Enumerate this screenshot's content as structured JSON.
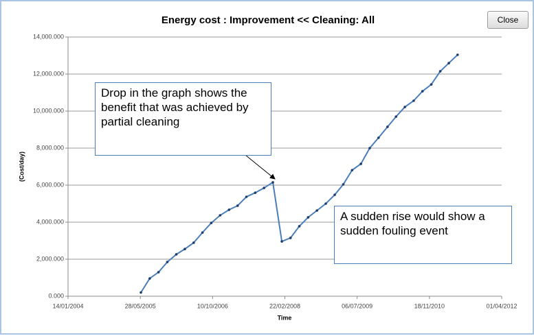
{
  "window": {
    "close_button": "Close"
  },
  "chart_data": {
    "type": "line",
    "title": "Energy cost : Improvement << Cleaning: All",
    "x_label": "Time",
    "y_label": "(Cost/day)",
    "x": [
      "2005-06-01",
      "2005-08-01",
      "2005-10-01",
      "2005-12-01",
      "2006-02-01",
      "2006-04-01",
      "2006-06-01",
      "2006-08-01",
      "2006-10-01",
      "2006-12-01",
      "2007-02-01",
      "2007-04-01",
      "2007-06-01",
      "2007-08-01",
      "2007-10-01",
      "2007-12-01",
      "2008-02-01",
      "2008-04-01",
      "2008-06-01",
      "2008-08-01",
      "2008-10-01",
      "2008-12-01",
      "2009-02-01",
      "2009-04-01",
      "2009-06-01",
      "2009-08-01",
      "2009-10-01",
      "2009-12-01",
      "2010-02-01",
      "2010-04-01",
      "2010-06-01",
      "2010-08-01",
      "2010-10-01",
      "2010-12-01",
      "2011-02-01",
      "2011-04-01",
      "2011-06-01"
    ],
    "series": [
      {
        "name": "Energy cost",
        "color": "#4a7ebb",
        "values": [
          200,
          960,
          1300,
          1850,
          2260,
          2550,
          2890,
          3440,
          3960,
          4370,
          4670,
          4890,
          5370,
          5590,
          5850,
          6150,
          2960,
          3150,
          3780,
          4260,
          4630,
          5000,
          5480,
          6040,
          6810,
          7150,
          8000,
          8560,
          9150,
          9700,
          10220,
          10560,
          11070,
          11440,
          12150,
          12590,
          13040
        ]
      }
    ],
    "xlim": [
      "2004-01-14",
      "2012-04-01"
    ],
    "xticks": [
      {
        "value": "2004-01-14",
        "label": "14/01/2004"
      },
      {
        "value": "2005-05-28",
        "label": "28/05/2005"
      },
      {
        "value": "2006-10-10",
        "label": "10/10/2006"
      },
      {
        "value": "2008-02-22",
        "label": "22/02/2008"
      },
      {
        "value": "2009-07-06",
        "label": "06/07/2009"
      },
      {
        "value": "2010-11-18",
        "label": "18/11/2010"
      },
      {
        "value": "2012-04-01",
        "label": "01/04/2012"
      }
    ],
    "ylim": [
      0,
      14000
    ],
    "yticks": [
      {
        "value": 0,
        "label": "0.000"
      },
      {
        "value": 2000,
        "label": "2,000.000"
      },
      {
        "value": 4000,
        "label": "4,000.000"
      },
      {
        "value": 6000,
        "label": "6,000.000"
      },
      {
        "value": 8000,
        "label": "8,000.000"
      },
      {
        "value": 10000,
        "label": "10,000.000"
      },
      {
        "value": 12000,
        "label": "12,000.000"
      },
      {
        "value": 14000,
        "label": "14,000.000"
      }
    ],
    "grid": true,
    "annotations": [
      {
        "text": "Drop in the graph shows the benefit that was achieved by partial cleaning"
      },
      {
        "text": "A sudden rise would show a sudden fouling event"
      }
    ]
  }
}
